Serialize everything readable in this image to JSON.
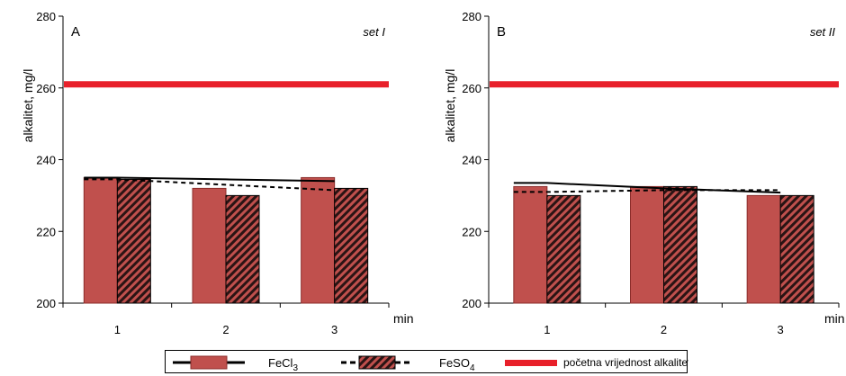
{
  "colors": {
    "bar_fill": "#c0504d",
    "bar_edge": "#8b2c2a",
    "initial_line": "#e8202a",
    "trend": "#000000"
  },
  "chart_data": [
    {
      "type": "bar",
      "panel_label": "A",
      "set_label": "set I",
      "ylabel": "alkalitet, mg/l",
      "xlabel": "min",
      "categories": [
        "1",
        "2",
        "3"
      ],
      "ylim": [
        200,
        280
      ],
      "yticks": [
        200,
        220,
        240,
        260,
        280
      ],
      "initial_value": 261,
      "series": [
        {
          "name": "FeCl3",
          "values": [
            235,
            232,
            235
          ],
          "trend": [
            235,
            234.5,
            234
          ]
        },
        {
          "name": "FeSO4",
          "values": [
            234.5,
            230,
            232
          ],
          "trend": [
            234.5,
            233,
            231.5
          ]
        }
      ]
    },
    {
      "type": "bar",
      "panel_label": "B",
      "set_label": "set II",
      "ylabel": "alkalitet, mg/l",
      "xlabel": "min",
      "categories": [
        "1",
        "2",
        "3"
      ],
      "ylim": [
        200,
        280
      ],
      "yticks": [
        200,
        220,
        240,
        260,
        280
      ],
      "initial_value": 261,
      "series": [
        {
          "name": "FeCl3",
          "values": [
            232.5,
            232.5,
            230
          ],
          "trend": [
            233.5,
            232,
            230.8
          ]
        },
        {
          "name": "FeSO4",
          "values": [
            230,
            232.5,
            230
          ],
          "trend": [
            231,
            231.5,
            231.5
          ]
        }
      ]
    }
  ],
  "legend": {
    "fecl3_label": "FeCl",
    "fecl3_sub": "3",
    "feso4_label": "FeSO",
    "feso4_sub": "4",
    "initial_label": "početna vrijednost alkaliteta"
  }
}
